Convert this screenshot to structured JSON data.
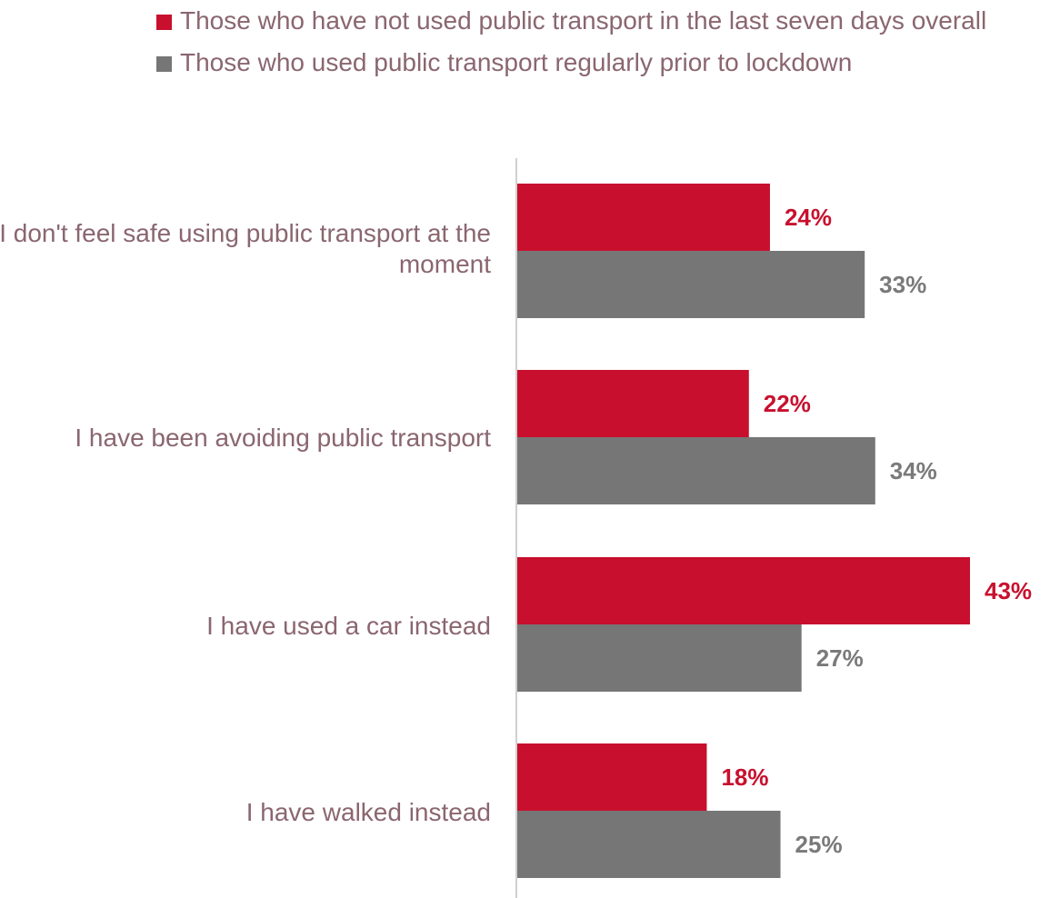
{
  "chart_data": {
    "type": "bar",
    "orientation": "horizontal",
    "categories": [
      "I don't feel safe using public transport at the moment",
      "I have been avoiding public transport",
      "I have used a car instead",
      "I have walked instead"
    ],
    "series": [
      {
        "name": "Those who have not used public transport in the last seven days overall",
        "color": "#c8102e",
        "values": [
          24,
          22,
          43,
          18
        ],
        "labels": [
          "24%",
          "22%",
          "43%",
          "18%"
        ]
      },
      {
        "name": "Those who used public transport regularly prior to lockdown",
        "color": "#767676",
        "values": [
          33,
          34,
          27,
          25
        ],
        "labels": [
          "33%",
          "34%",
          "27%",
          "25%"
        ]
      }
    ],
    "xlim": [
      0,
      43
    ],
    "legend_position": "top",
    "grid": false
  }
}
